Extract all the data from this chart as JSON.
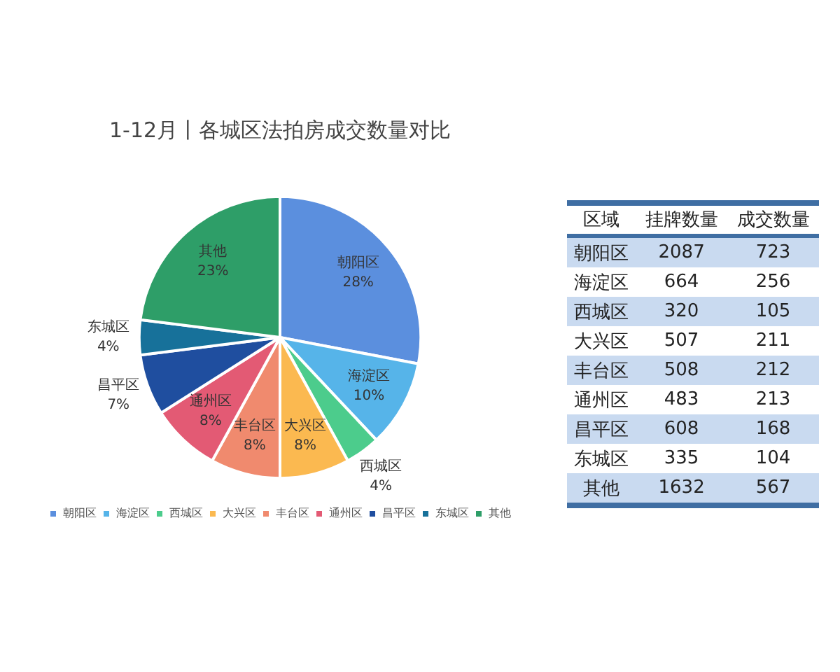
{
  "chart_data": [
    {
      "type": "pie",
      "title": "1-12月丨各城区法拍房成交数量对比",
      "categories": [
        "朝阳区",
        "海淀区",
        "西城区",
        "大兴区",
        "丰台区",
        "通州区",
        "昌平区",
        "东城区",
        "其他"
      ],
      "values": [
        28,
        10,
        4,
        8,
        8,
        8,
        7,
        4,
        23
      ],
      "colors": [
        "#5b8fde",
        "#56b4e9",
        "#4ccc8c",
        "#fbb950",
        "#f08a6e",
        "#e35a74",
        "#1f4e9f",
        "#17719a",
        "#2e9e68"
      ],
      "value_labels": [
        "28%",
        "10%",
        "4%",
        "8%",
        "8%",
        "8%",
        "7%",
        "4%",
        "23%"
      ],
      "legend": "bottom"
    },
    {
      "type": "other",
      "xlabel": "区域",
      "data_labels": true,
      "categories": [
        "朝阳区",
        "海淀区",
        "西城区",
        "大兴区",
        "丰台区",
        "通州区",
        "昌平区",
        "东城区",
        "其他"
      ],
      "series": [
        {
          "name": "挂牌数量",
          "values": [
            2087,
            664,
            320,
            507,
            508,
            483,
            608,
            335,
            1632
          ]
        },
        {
          "name": "成交数量",
          "values": [
            723,
            256,
            105,
            211,
            212,
            213,
            168,
            104,
            567
          ]
        }
      ]
    }
  ]
}
